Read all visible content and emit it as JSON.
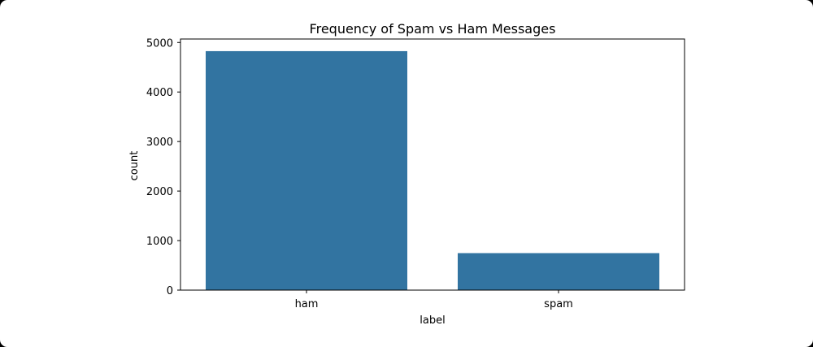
{
  "chart_data": {
    "type": "bar",
    "title": "Frequency of Spam vs Ham Messages",
    "xlabel": "label",
    "ylabel": "count",
    "categories": [
      "ham",
      "spam"
    ],
    "values": [
      4825,
      747
    ],
    "ylim": [
      0,
      5070
    ],
    "yticks": [
      0,
      1000,
      2000,
      3000,
      4000,
      5000
    ],
    "grid": false,
    "bar_color": "#3274a1"
  }
}
